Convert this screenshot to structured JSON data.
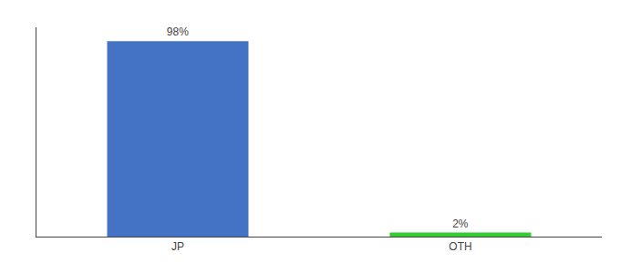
{
  "chart_data": {
    "type": "bar",
    "categories": [
      "JP",
      "OTH"
    ],
    "values": [
      98,
      2
    ],
    "value_labels": [
      "98%",
      "2%"
    ],
    "colors": [
      "#4472c4",
      "#33cc33"
    ],
    "ylim": [
      0,
      105
    ],
    "data_labels": true,
    "tick_labels": "x",
    "grid": false
  }
}
